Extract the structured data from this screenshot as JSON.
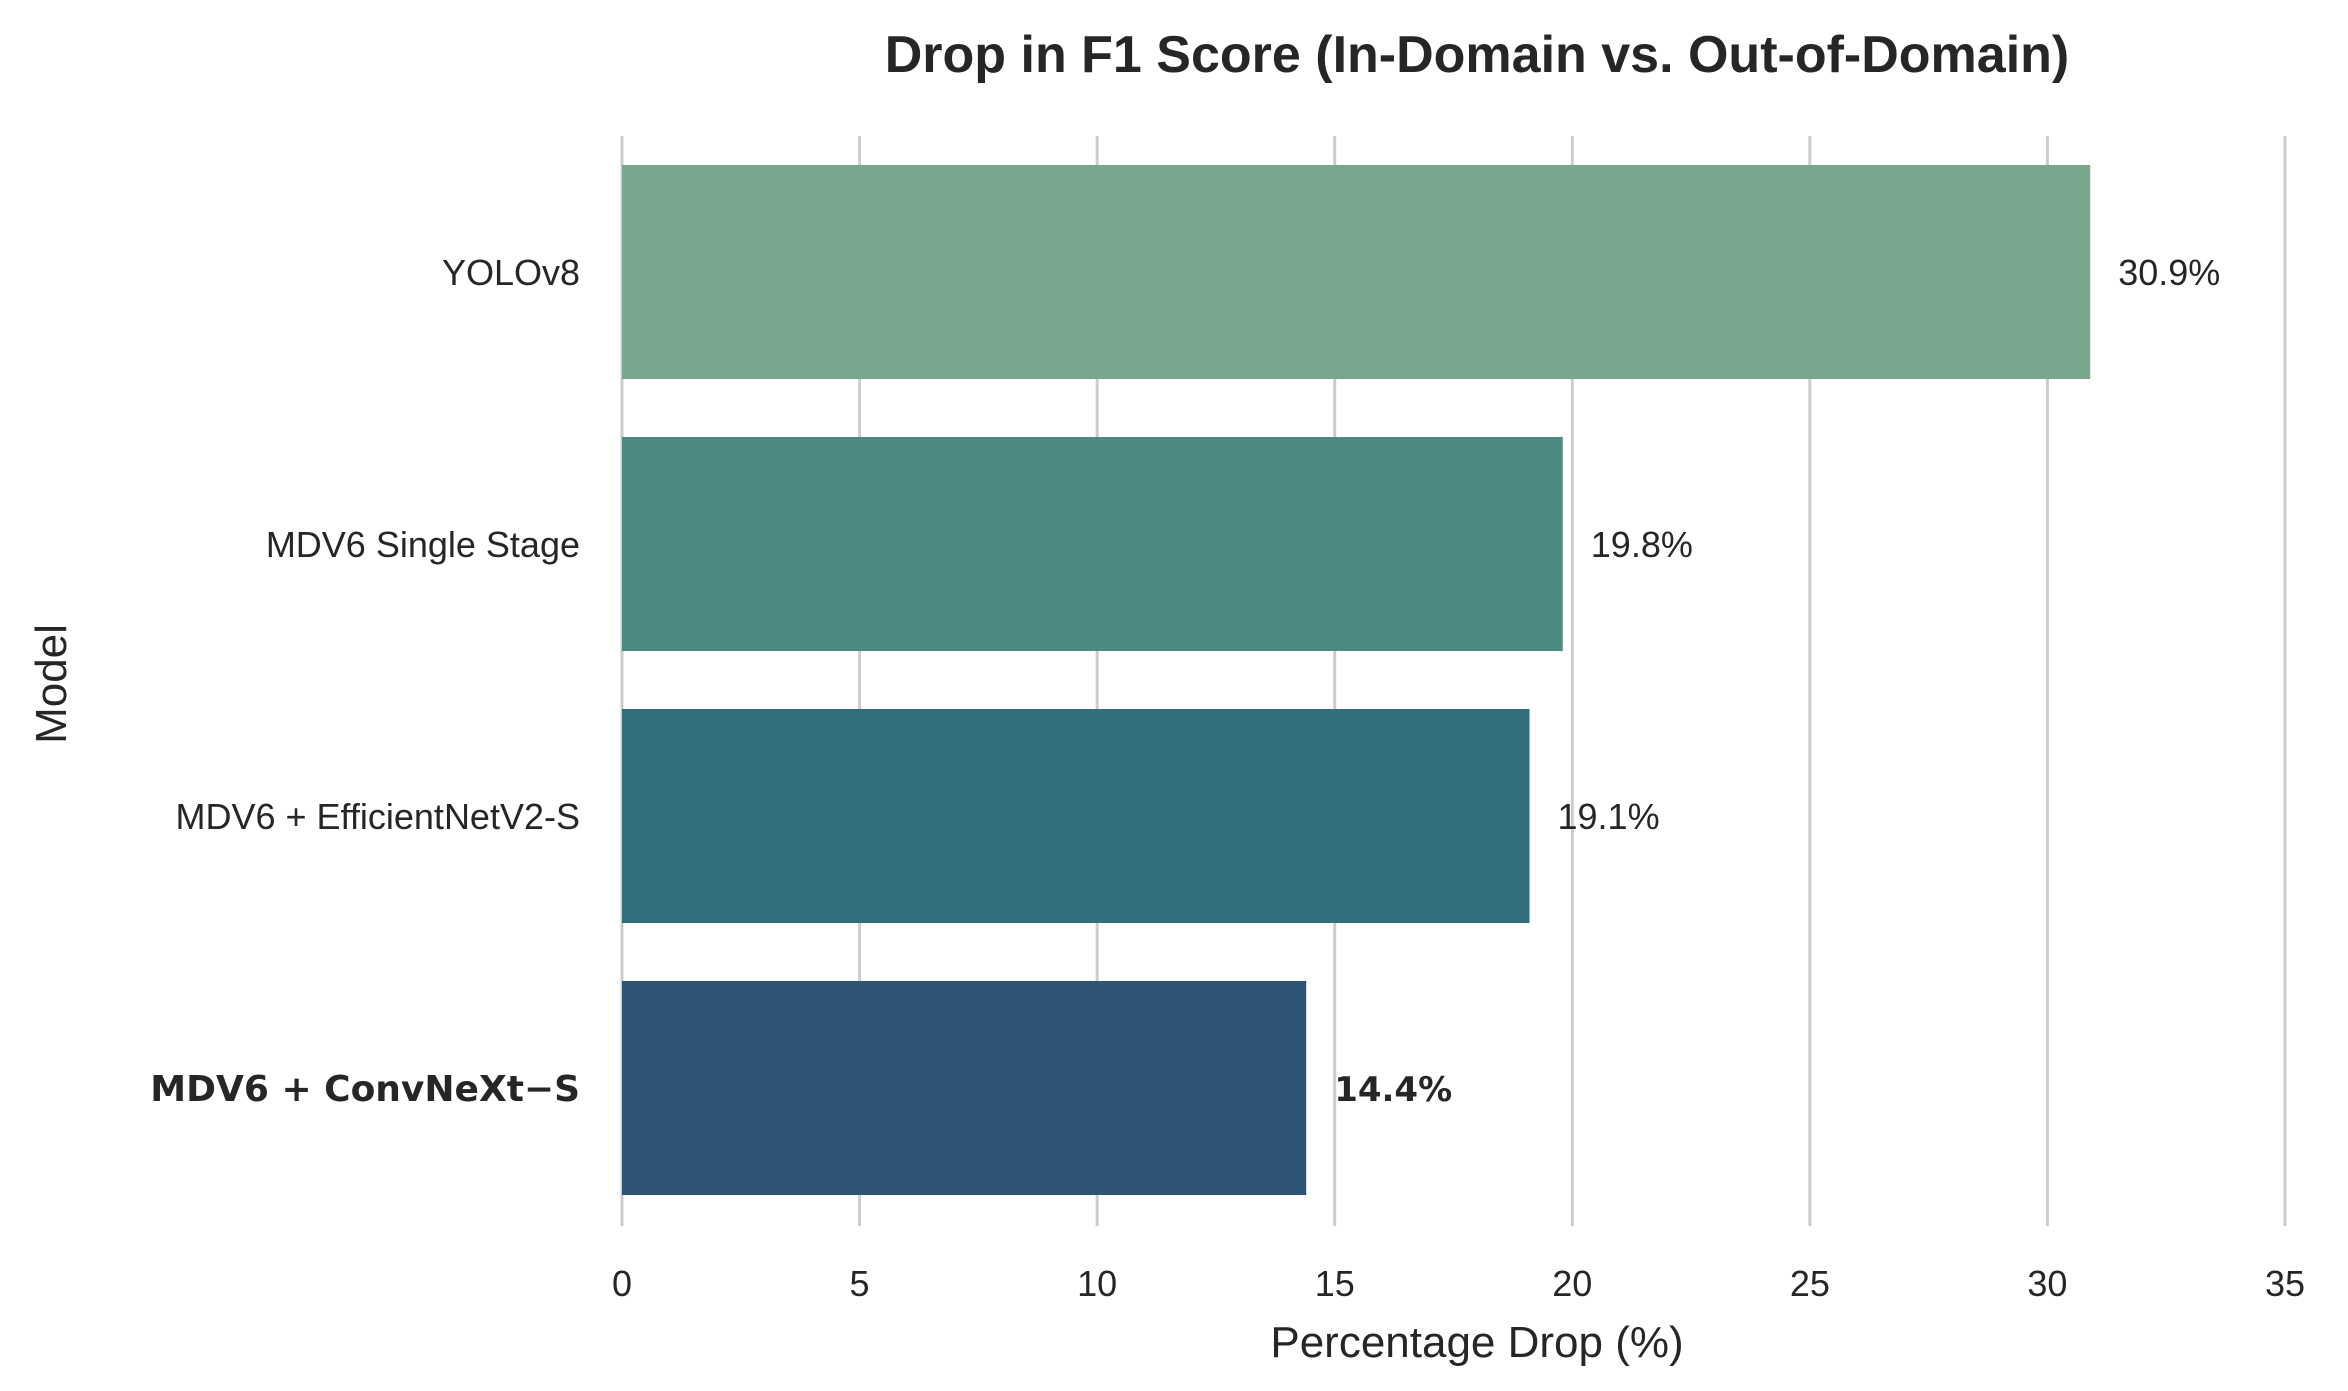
{
  "chart_data": {
    "type": "bar",
    "orientation": "horizontal",
    "title": "Drop in F1 Score (In-Domain vs. Out-of-Domain)",
    "xlabel": "Percentage Drop (%)",
    "ylabel": "Model",
    "xlim": [
      0,
      35
    ],
    "xticks": [
      "0",
      "5",
      "10",
      "15",
      "20",
      "25",
      "30",
      "35"
    ],
    "grid": "vertical",
    "categories": [
      "YOLOv8",
      "MDV6 Single Stage",
      "MDV6 + EfficientNetV2-S",
      "MDV6 + ConvNeXt−S"
    ],
    "values": [
      30.9,
      19.8,
      19.1,
      14.4
    ],
    "value_labels": [
      "30.9%",
      "19.8%",
      "19.1%",
      "14.4%"
    ],
    "colors": [
      "#79a78d",
      "#4e8a84",
      "#336e7b",
      "#2e5576"
    ],
    "highlighted_category": "MDV6 + ConvNeXt−S"
  }
}
